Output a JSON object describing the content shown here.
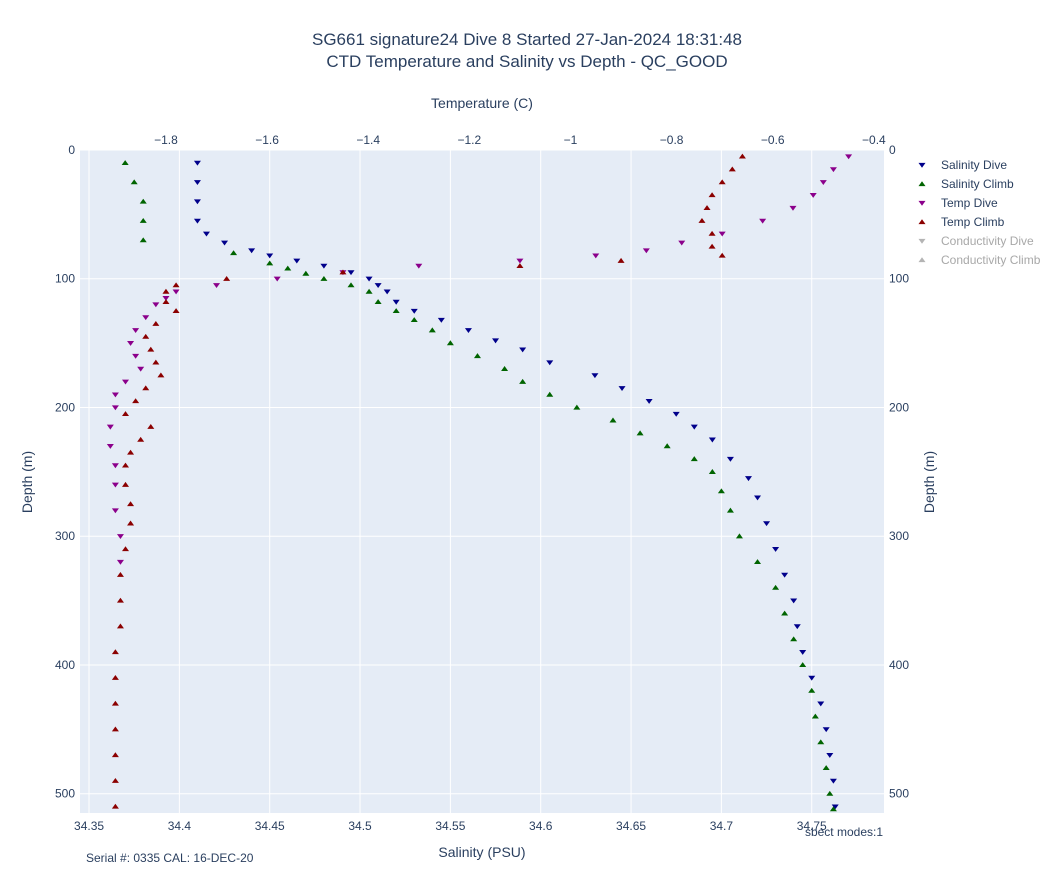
{
  "colors": {
    "plot_bg": "#e5ecf6",
    "grid": "#ffffff",
    "salinity_dive": "#00008b",
    "salinity_climb": "#006400",
    "temp_dive": "#8b008b",
    "temp_climb": "#8b0000",
    "legend_disabled": "#b4b4b4"
  },
  "chart_data": {
    "type": "scatter",
    "title": [
      "SG661 signature24 Dive 8 Started 27-Jan-2024 18:31:48",
      "CTD Temperature and Salinity vs Depth - QC_GOOD"
    ],
    "xlabel_bottom": "Salinity (PSU)",
    "xlabel_top": "Temperature (C)",
    "ylabel_left": "Depth (m)",
    "ylabel_right": "Depth (m)",
    "x_bottom_range": [
      34.345,
      34.79
    ],
    "x_top_range": [
      -1.97,
      -0.38
    ],
    "y_range": [
      515,
      0
    ],
    "x_bottom_ticks": [
      "34.35",
      "34.4",
      "34.45",
      "34.5",
      "34.55",
      "34.6",
      "34.65",
      "34.7",
      "34.75"
    ],
    "x_top_ticks": [
      "−1.8",
      "−1.6",
      "−1.4",
      "−1.2",
      "−1",
      "−0.8",
      "−0.6",
      "−0.4"
    ],
    "y_ticks": [
      "0",
      "100",
      "200",
      "300",
      "400",
      "500"
    ],
    "legend_placement": "top-right",
    "legend": [
      {
        "name": "Salinity Dive",
        "visible": true
      },
      {
        "name": "Salinity Climb",
        "visible": true
      },
      {
        "name": "Temp Dive",
        "visible": true
      },
      {
        "name": "Temp Climb",
        "visible": true
      },
      {
        "name": "Conductivity Dive",
        "visible": false
      },
      {
        "name": "Conductivity Climb",
        "visible": false
      }
    ],
    "series": [
      {
        "name": "Salinity Dive",
        "axis": "bottom",
        "marker": "triangle-down",
        "depth": [
          10,
          25,
          40,
          55,
          65,
          72,
          78,
          82,
          86,
          90,
          95,
          100,
          105,
          110,
          118,
          125,
          132,
          140,
          148,
          155,
          165,
          175,
          185,
          195,
          205,
          215,
          225,
          240,
          255,
          270,
          290,
          310,
          330,
          350,
          370,
          390,
          410,
          430,
          450,
          470,
          490,
          510
        ],
        "values": [
          34.41,
          34.41,
          34.41,
          34.41,
          34.415,
          34.425,
          34.44,
          34.45,
          34.465,
          34.48,
          34.495,
          34.505,
          34.51,
          34.515,
          34.52,
          34.53,
          34.545,
          34.56,
          34.575,
          34.59,
          34.605,
          34.63,
          34.645,
          34.66,
          34.675,
          34.685,
          34.695,
          34.705,
          34.715,
          34.72,
          34.725,
          34.73,
          34.735,
          34.74,
          34.742,
          34.745,
          34.75,
          34.755,
          34.758,
          34.76,
          34.762,
          34.763
        ]
      },
      {
        "name": "Salinity Climb",
        "axis": "bottom",
        "marker": "triangle-up",
        "depth": [
          10,
          25,
          40,
          55,
          70,
          80,
          88,
          92,
          96,
          100,
          105,
          110,
          118,
          125,
          132,
          140,
          150,
          160,
          170,
          180,
          190,
          200,
          210,
          220,
          230,
          240,
          250,
          265,
          280,
          300,
          320,
          340,
          360,
          380,
          400,
          420,
          440,
          460,
          480,
          500,
          512
        ],
        "values": [
          34.37,
          34.375,
          34.38,
          34.38,
          34.38,
          34.43,
          34.45,
          34.46,
          34.47,
          34.48,
          34.495,
          34.505,
          34.51,
          34.52,
          34.53,
          34.54,
          34.55,
          34.565,
          34.58,
          34.59,
          34.605,
          34.62,
          34.64,
          34.655,
          34.67,
          34.685,
          34.695,
          34.7,
          34.705,
          34.71,
          34.72,
          34.73,
          34.735,
          34.74,
          34.745,
          34.75,
          34.752,
          34.755,
          34.758,
          34.76,
          34.762
        ]
      },
      {
        "name": "Temp Dive",
        "axis": "top",
        "marker": "triangle-down",
        "depth": [
          5,
          15,
          25,
          35,
          45,
          55,
          65,
          72,
          78,
          82,
          86,
          90,
          95,
          100,
          105,
          110,
          115,
          120,
          130,
          140,
          150,
          160,
          170,
          180,
          190,
          200,
          215,
          230,
          245,
          260,
          280,
          300,
          320
        ],
        "values": [
          -0.45,
          -0.48,
          -0.5,
          -0.52,
          -0.56,
          -0.62,
          -0.7,
          -0.78,
          -0.85,
          -0.95,
          -1.1,
          -1.3,
          -1.45,
          -1.58,
          -1.7,
          -1.78,
          -1.8,
          -1.82,
          -1.84,
          -1.86,
          -1.87,
          -1.86,
          -1.85,
          -1.88,
          -1.9,
          -1.9,
          -1.91,
          -1.91,
          -1.9,
          -1.9,
          -1.9,
          -1.89,
          -1.89
        ]
      },
      {
        "name": "Temp Climb",
        "axis": "top",
        "marker": "triangle-up",
        "depth": [
          5,
          15,
          25,
          35,
          45,
          55,
          65,
          75,
          82,
          86,
          90,
          95,
          100,
          105,
          110,
          118,
          125,
          135,
          145,
          155,
          165,
          175,
          185,
          195,
          205,
          215,
          225,
          235,
          245,
          260,
          275,
          290,
          310,
          330,
          350,
          370,
          390,
          410,
          430,
          450,
          470,
          490,
          510
        ],
        "values": [
          -0.66,
          -0.68,
          -0.7,
          -0.72,
          -0.73,
          -0.74,
          -0.72,
          -0.72,
          -0.7,
          -0.9,
          -1.1,
          -1.45,
          -1.68,
          -1.78,
          -1.8,
          -1.8,
          -1.78,
          -1.82,
          -1.84,
          -1.83,
          -1.82,
          -1.81,
          -1.84,
          -1.86,
          -1.88,
          -1.83,
          -1.85,
          -1.87,
          -1.88,
          -1.88,
          -1.87,
          -1.87,
          -1.88,
          -1.89,
          -1.89,
          -1.89,
          -1.9,
          -1.9,
          -1.9,
          -1.9,
          -1.9,
          -1.9,
          -1.9
        ]
      }
    ],
    "annotations": {
      "footer_left": "Serial #: 0335  CAL: 16-DEC-20",
      "footer_right": "sbect modes:1"
    }
  }
}
